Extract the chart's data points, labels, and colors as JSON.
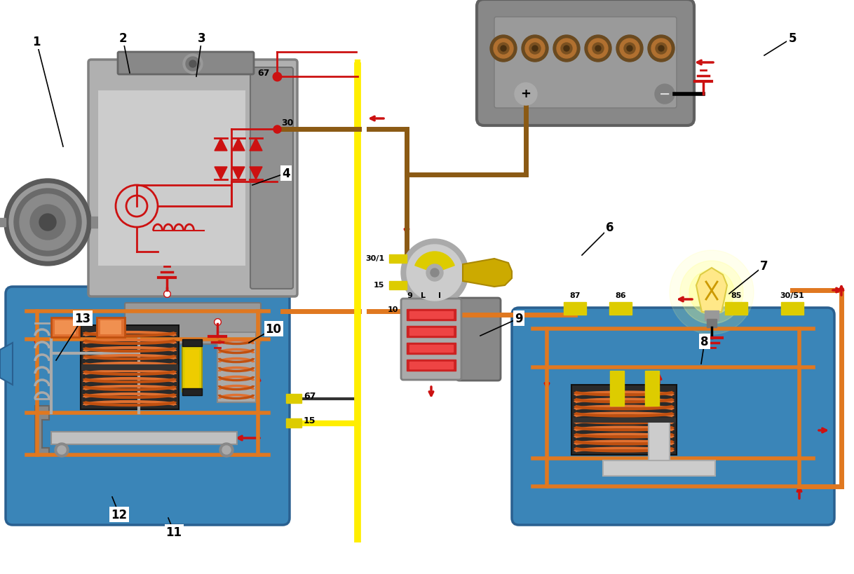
{
  "background_color": "#ffffff",
  "fig_width": 12.18,
  "fig_height": 8.2,
  "RED": "#cc1111",
  "ORANGE": "#e07820",
  "YELLOW": "#ffee00",
  "BROWN": "#8B5A14",
  "BLUE": "#3a7fb5",
  "LGRAY": "#c8c8c8",
  "GRAY": "#a0a0a0",
  "DGRAY": "#606060",
  "BLACK": "#000000",
  "WHITE": "#ffffff"
}
